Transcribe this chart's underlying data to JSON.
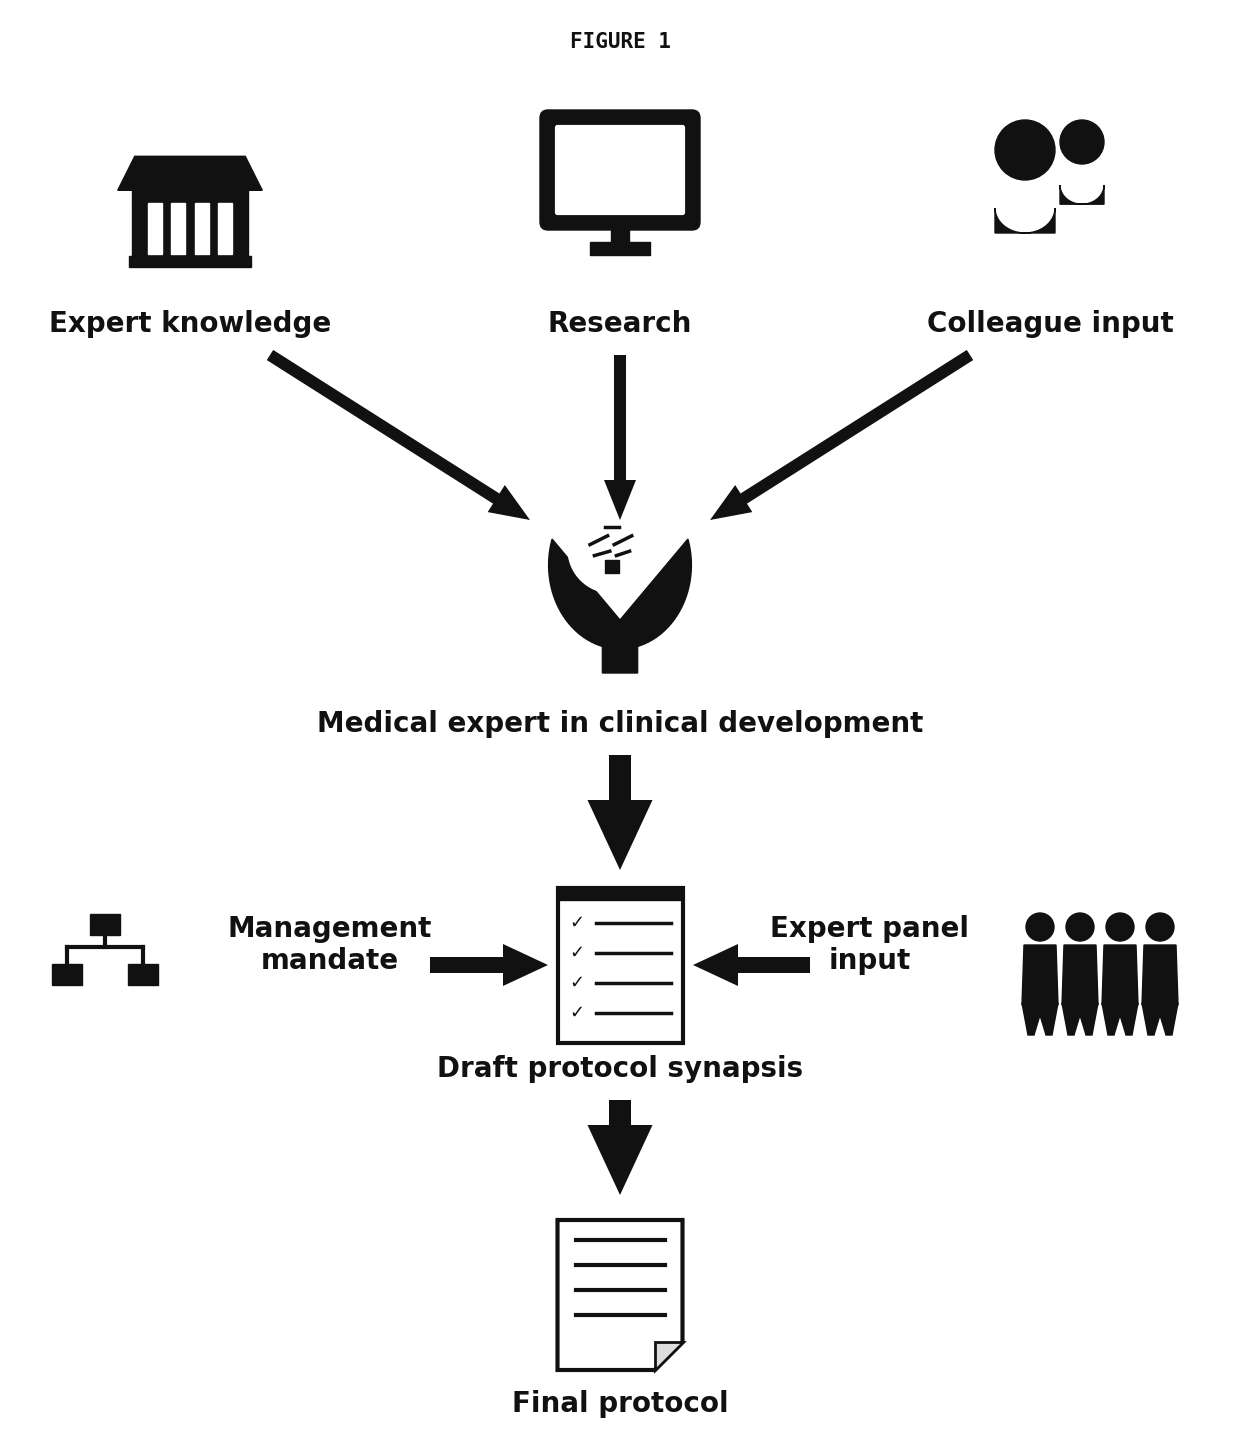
{
  "title": "FIGURE 1",
  "bg_color": "#ffffff",
  "icon_color": "#111111",
  "label_fontsize": 20,
  "title_fontsize": 15,
  "labels": {
    "expert_knowledge": "Expert knowledge",
    "research": "Research",
    "colleague_input": "Colleague input",
    "medical_expert": "Medical expert in clinical development",
    "management_mandate": "Management\nmandate",
    "expert_panel_input": "Expert panel\ninput",
    "draft_protocol": "Draft protocol synapsis",
    "final_protocol": "Final protocol"
  }
}
